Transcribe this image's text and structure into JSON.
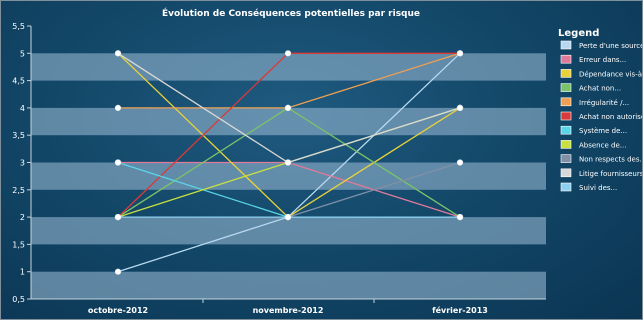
{
  "chart_data": {
    "type": "line",
    "title": "Évolution de Conséquences potentielles par risque",
    "categories": [
      "octobre-2012",
      "novembre-2012",
      "février-2013"
    ],
    "ylim": [
      0.5,
      5.5
    ],
    "yticks": [
      "0,5",
      "1",
      "1,5",
      "2",
      "2,5",
      "3",
      "3,5",
      "4",
      "4,5",
      "5",
      "5,5"
    ],
    "legend_title": "Legend",
    "legend_position": "right",
    "series": [
      {
        "name": "Perte d'une source...",
        "color": "#b8d8f0",
        "values": [
          1,
          2,
          5
        ]
      },
      {
        "name": "Erreur dans...",
        "color": "#e07a9a",
        "values": [
          3,
          3,
          2
        ]
      },
      {
        "name": "Dépendance vis-à-...",
        "color": "#e8d23a",
        "values": [
          5,
          2,
          4
        ]
      },
      {
        "name": "Achat non...",
        "color": "#7ac36a",
        "values": [
          2,
          4,
          2
        ]
      },
      {
        "name": "Irrégularité /...",
        "color": "#f0a050",
        "values": [
          4,
          4,
          5
        ]
      },
      {
        "name": "Achat non autorisé...",
        "color": "#d93a3a",
        "values": [
          2,
          5,
          5
        ]
      },
      {
        "name": "Système de...",
        "color": "#5ad6e8",
        "values": [
          3,
          2,
          2
        ]
      },
      {
        "name": "Absence de...",
        "color": "#c8e040",
        "values": [
          2,
          3,
          4
        ]
      },
      {
        "name": "Non respects des...",
        "color": "#8090a8",
        "values": [
          2,
          2,
          3
        ]
      },
      {
        "name": "Litige fournisseurs",
        "color": "#d8d8d8",
        "values": [
          5,
          3,
          4
        ]
      },
      {
        "name": "Suivi des...",
        "color": "#8ed0f0",
        "values": [
          2,
          2,
          2
        ]
      }
    ]
  }
}
